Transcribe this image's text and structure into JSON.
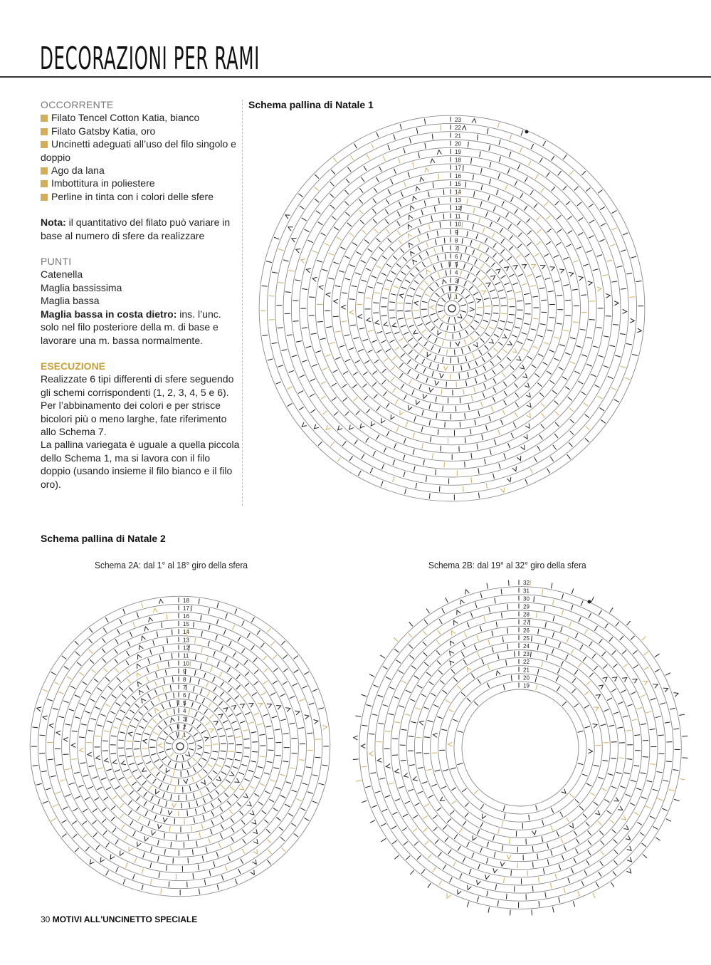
{
  "header": {
    "title": "DECORAZIONI PER RAMI"
  },
  "materials": {
    "heading": "OCCORRENTE",
    "items": [
      "Filato Tencel Cotton Katia, bianco",
      "Filato Gatsby Katia, oro",
      "Uncinetti adeguati all’uso del filo singolo e doppio",
      "Ago da lana",
      "Imbottitura in poliestere",
      "Perline in tinta con i colori delle sfere"
    ],
    "note_label": "Nota:",
    "note_text": " il quantitativo del filato può variare in base al numero di sfere da realizzare"
  },
  "stitches": {
    "heading": "PUNTI",
    "items": [
      "Catenella",
      "Maglia bassissima",
      "Maglia bassa"
    ],
    "special_label": "Maglia bassa in costa dietro:",
    "special_text": " ins. l’unc. solo nel filo posteriore della m. di base e lavorare una m. bassa normalmente."
  },
  "execution": {
    "heading": "ESECUZIONE",
    "paragraphs": [
      "Realizzate 6 tipi differenti di sfere seguendo gli schemi corrispondenti (1, 2, 3, 4, 5 e 6).",
      "Per l’abbinamento dei colori e per strisce bicolori più o meno larghe, fate riferimento allo Schema 7.",
      "La pallina variegata è uguale a quella piccola dello Schema 1, ma si lavora con il filo doppio (usando insieme il filo bianco e il filo oro)."
    ]
  },
  "diagrams": {
    "schema1": {
      "title": "Schema pallina di Natale 1",
      "first_round": 1,
      "last_round": 23
    },
    "schema2": {
      "title": "Schema pallina di Natale 2"
    },
    "schema2a": {
      "title": "Schema 2A: dal 1° al 18° giro della sfera",
      "first_round": 1,
      "last_round": 18
    },
    "schema2b": {
      "title": "Schema 2B: dal 19° al 32° giro della sfera",
      "first_round": 19,
      "last_round": 32
    }
  },
  "colors": {
    "gold": "#d1ad5c",
    "line": "#888888",
    "ink": "#222222"
  },
  "footer": {
    "page_number": "30",
    "publication": "MOTIVI ALL'UNCINETTO SPECIALE"
  }
}
